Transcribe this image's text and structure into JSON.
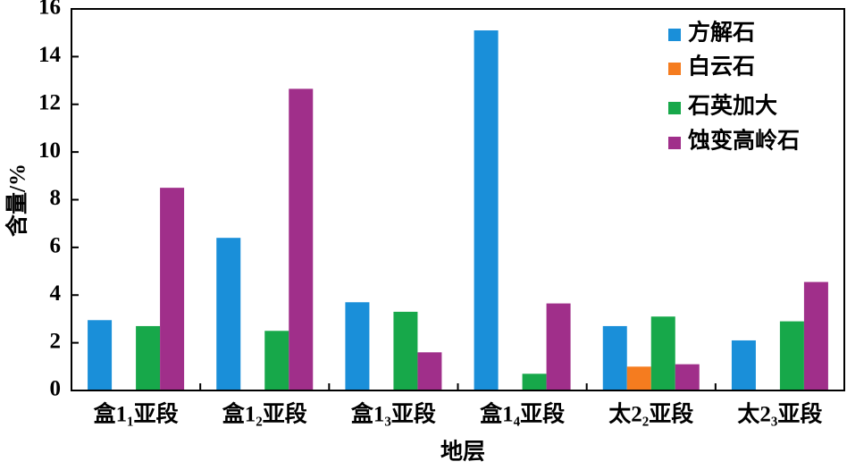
{
  "chart_data": {
    "type": "bar",
    "xlabel": "地层",
    "ylabel": "含量/%",
    "categories": [
      "盒1₁亚段",
      "盒1₂亚段",
      "盒1₃亚段",
      "盒1₄亚段",
      "太2₂亚段",
      "太2₃亚段"
    ],
    "series": [
      {
        "name": "方解石",
        "color": "#1a8fd9",
        "values": [
          2.95,
          6.4,
          3.7,
          15.1,
          2.7,
          2.1
        ]
      },
      {
        "name": "白云石",
        "color": "#f57c1f",
        "values": [
          0,
          0,
          0,
          0,
          1.0,
          0
        ]
      },
      {
        "name": "石英加大",
        "color": "#17a84a",
        "values": [
          2.7,
          2.5,
          3.3,
          0.7,
          3.1,
          2.9
        ]
      },
      {
        "name": "蚀变高岭石",
        "color": "#a02f8a",
        "values": [
          8.5,
          12.65,
          1.6,
          3.65,
          1.1,
          4.55
        ]
      }
    ],
    "ylim": [
      0,
      16
    ],
    "yticks": [
      0,
      2,
      4,
      6,
      8,
      10,
      12,
      14,
      16
    ],
    "legend": "upper right"
  }
}
